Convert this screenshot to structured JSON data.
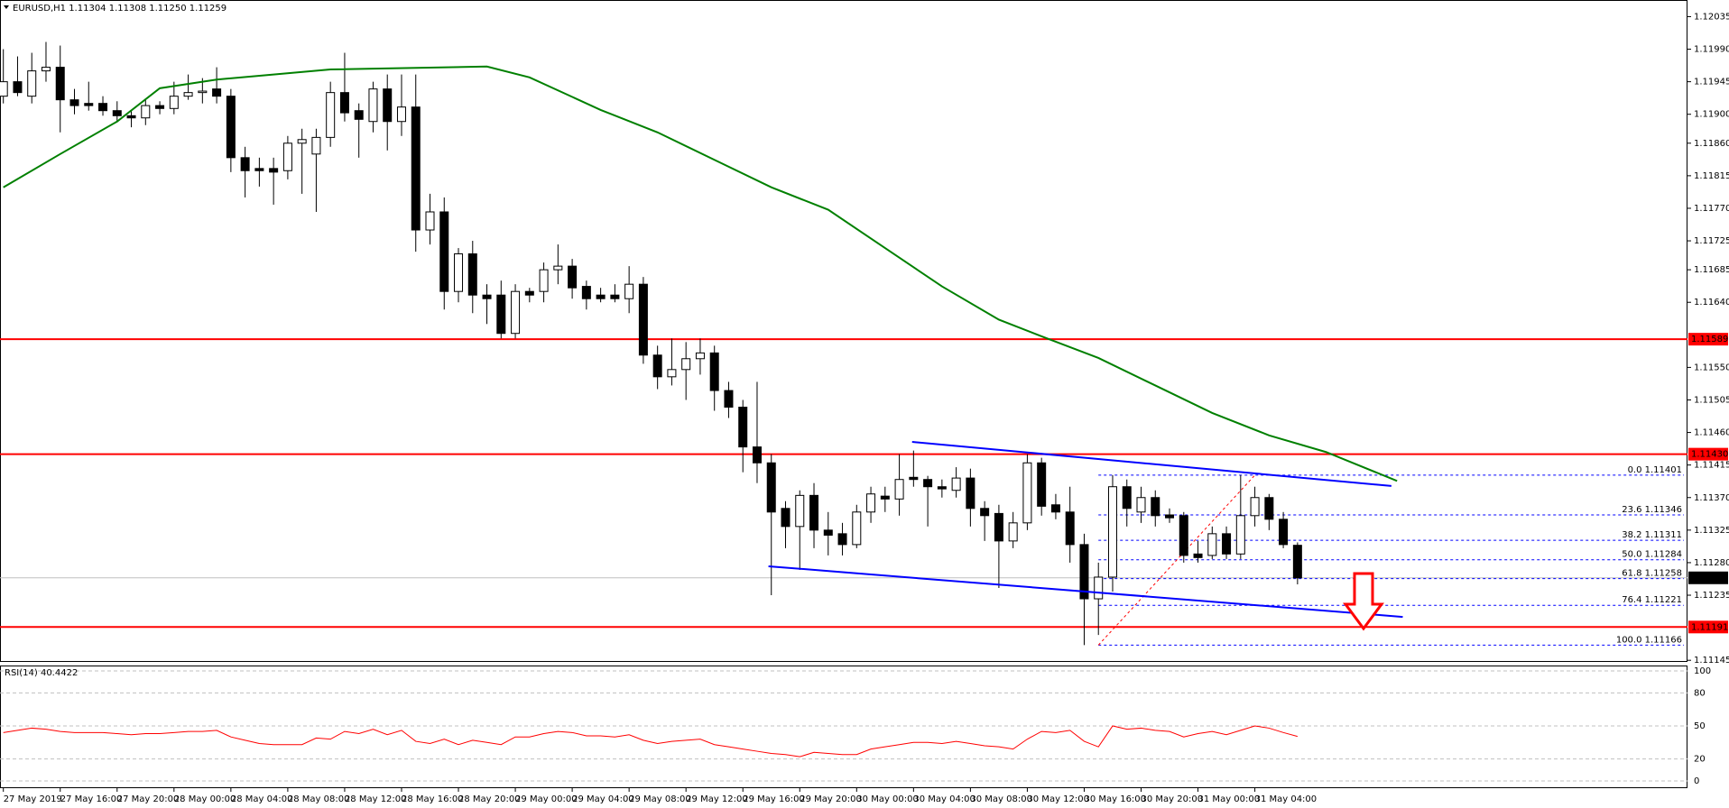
{
  "chart_data": [
    {
      "type": "candlestick",
      "title": "EURUSD,H1 1.11304 1.11308 1.11250 1.11259",
      "categories": [
        "27 May 2019",
        null,
        null,
        null,
        "27 May 16:00",
        null,
        null,
        null,
        "27 May 20:00",
        null,
        null,
        null,
        "28 May 00:00",
        null,
        null,
        null,
        "28 May 04:00",
        null,
        null,
        null,
        "28 May 08:00",
        null,
        null,
        null,
        "28 May 12:00",
        null,
        null,
        null,
        "28 May 16:00",
        null,
        null,
        null,
        "28 May 20:00",
        null,
        null,
        null,
        "29 May 00:00",
        null,
        null,
        null,
        "29 May 04:00",
        null,
        null,
        null,
        "29 May 08:00",
        null,
        null,
        null,
        "29 May 12:00",
        null,
        null,
        null,
        "29 May 16:00",
        null,
        null,
        null,
        "29 May 20:00",
        null,
        null,
        null,
        "30 May 00:00",
        null,
        null,
        null,
        "30 May 04:00",
        null,
        null,
        null,
        "30 May 08:00",
        null,
        null,
        null,
        "30 May 12:00",
        null,
        null,
        null,
        "30 May 16:00",
        null,
        null,
        null,
        "30 May 20:00",
        null,
        null,
        null,
        "31 May 00:00",
        null,
        null,
        null,
        "31 May 04:00",
        null,
        null,
        null
      ],
      "open": [
        1.11925,
        1.11945,
        1.11925,
        1.1196,
        1.11965,
        1.1192,
        1.11915,
        1.11915,
        1.11905,
        1.11898,
        1.11895,
        1.11912,
        1.11908,
        1.11925,
        1.1193,
        1.11935,
        1.11925,
        1.1184,
        1.11825,
        1.11825,
        1.11822,
        1.1186,
        1.11845,
        1.11868,
        1.1193,
        1.11905,
        1.1189,
        1.11935,
        1.1189,
        1.1191,
        1.1174,
        1.11765,
        1.11655,
        1.11707,
        1.1165,
        1.1165,
        1.11597,
        1.11655,
        1.11655,
        1.11685,
        1.1169,
        1.11662,
        1.1165,
        1.1165,
        1.11645,
        1.11665,
        1.11567,
        1.11537,
        1.11547,
        1.11562,
        1.1157,
        1.11518,
        1.11495,
        1.1144,
        1.11418,
        1.11355,
        1.1133,
        1.11373,
        1.11325,
        1.1132,
        1.11305,
        1.1135,
        1.11372,
        1.11368,
        1.11398,
        1.11395,
        1.11385,
        1.1138,
        1.11397,
        1.11355,
        1.11348,
        1.1131,
        1.11335,
        1.11418,
        1.1136,
        1.1135,
        1.11305,
        1.1123,
        1.1126,
        1.11385,
        1.1135,
        1.1137,
        1.11346,
        1.11345,
        1.11292,
        1.1129,
        1.1132,
        1.11292,
        1.11345,
        1.1137,
        1.1134,
        1.11304
      ],
      "high": [
        1.1199,
        1.1198,
        1.11985,
        1.12,
        1.11995,
        1.11935,
        1.11945,
        1.11925,
        1.11918,
        1.11905,
        1.1192,
        1.11918,
        1.11945,
        1.11955,
        1.1195,
        1.11965,
        1.11935,
        1.11855,
        1.1184,
        1.1184,
        1.1187,
        1.1188,
        1.1188,
        1.11945,
        1.11985,
        1.11915,
        1.11945,
        1.11955,
        1.11955,
        1.11955,
        1.1179,
        1.11785,
        1.11715,
        1.11725,
        1.11665,
        1.1167,
        1.11665,
        1.1166,
        1.11695,
        1.1172,
        1.117,
        1.1167,
        1.1166,
        1.11665,
        1.1169,
        1.11675,
        1.1158,
        1.1159,
        1.11585,
        1.1159,
        1.1158,
        1.1153,
        1.11505,
        1.1153,
        1.1143,
        1.11365,
        1.1138,
        1.1139,
        1.1135,
        1.11335,
        1.1136,
        1.11385,
        1.11385,
        1.1143,
        1.11435,
        1.114,
        1.11395,
        1.11412,
        1.1141,
        1.11365,
        1.1136,
        1.1135,
        1.1143,
        1.11425,
        1.11375,
        1.11385,
        1.1132,
        1.1128,
        1.11401,
        1.11395,
        1.11385,
        1.1138,
        1.11355,
        1.1135,
        1.1131,
        1.1133,
        1.1133,
        1.11401,
        1.11385,
        1.11375,
        1.1135,
        1.11308
      ],
      "low": [
        1.11915,
        1.11925,
        1.11915,
        1.11945,
        1.11875,
        1.119,
        1.11905,
        1.11898,
        1.1189,
        1.11882,
        1.11885,
        1.119,
        1.119,
        1.1192,
        1.11915,
        1.11915,
        1.1182,
        1.11785,
        1.118,
        1.11775,
        1.1181,
        1.1179,
        1.11765,
        1.11855,
        1.1189,
        1.1184,
        1.11875,
        1.1185,
        1.1187,
        1.1171,
        1.1172,
        1.1163,
        1.1164,
        1.11625,
        1.1161,
        1.1159,
        1.1159,
        1.1164,
        1.1164,
        1.11665,
        1.11645,
        1.1163,
        1.1164,
        1.1164,
        1.11625,
        1.11555,
        1.1152,
        1.11525,
        1.11505,
        1.1154,
        1.1149,
        1.1148,
        1.11405,
        1.1139,
        1.11235,
        1.113,
        1.1127,
        1.113,
        1.1129,
        1.1129,
        1.113,
        1.11335,
        1.1135,
        1.11345,
        1.11385,
        1.1133,
        1.1137,
        1.1137,
        1.1133,
        1.1131,
        1.11245,
        1.113,
        1.11325,
        1.11345,
        1.1134,
        1.1128,
        1.11166,
        1.1118,
        1.1124,
        1.1133,
        1.11335,
        1.1133,
        1.11335,
        1.1128,
        1.1128,
        1.11285,
        1.11285,
        1.11285,
        1.1133,
        1.11325,
        1.113,
        1.1125
      ],
      "close": [
        1.11945,
        1.1193,
        1.1196,
        1.11965,
        1.1192,
        1.11912,
        1.11912,
        1.11905,
        1.11898,
        1.11895,
        1.11912,
        1.11908,
        1.11925,
        1.1193,
        1.11932,
        1.11925,
        1.1184,
        1.11822,
        1.11822,
        1.1182,
        1.1186,
        1.11865,
        1.11868,
        1.1193,
        1.11902,
        1.11893,
        1.11935,
        1.1189,
        1.1191,
        1.1174,
        1.11765,
        1.11655,
        1.11707,
        1.1165,
        1.11645,
        1.11597,
        1.11655,
        1.1165,
        1.11685,
        1.1169,
        1.1166,
        1.11645,
        1.11645,
        1.11645,
        1.11665,
        1.11567,
        1.11537,
        1.11547,
        1.11562,
        1.1157,
        1.11518,
        1.11495,
        1.1144,
        1.11418,
        1.1135,
        1.1133,
        1.11373,
        1.11325,
        1.11318,
        1.11305,
        1.1135,
        1.11375,
        1.11368,
        1.11395,
        1.11395,
        1.11385,
        1.11382,
        1.11397,
        1.11355,
        1.11345,
        1.1131,
        1.11335,
        1.11418,
        1.11358,
        1.1135,
        1.11305,
        1.1123,
        1.1126,
        1.11385,
        1.11355,
        1.1137,
        1.11345,
        1.11342,
        1.1129,
        1.11287,
        1.1132,
        1.11292,
        1.11345,
        1.1137,
        1.1134,
        1.11305,
        1.11259
      ],
      "up_color": "#ffffff",
      "down_color": "#000000",
      "ylim": [
        1.11144,
        1.12058
      ],
      "yticks": [
        1.12035,
        {
          "value": 1.1199,
          "label": "1.11990"
        },
        1.11945,
        {
          "value": 1.119,
          "label": "1.11900"
        },
        {
          "value": 1.1186,
          "label": "1.11860"
        },
        1.11815,
        {
          "value": 1.1177,
          "label": "1.11770"
        },
        1.11725,
        1.11685,
        {
          "value": 1.1164,
          "label": "1.11640"
        },
        {
          "value": 1.1155,
          "label": "1.11550"
        },
        1.11505,
        {
          "value": 1.1146,
          "label": "1.11460"
        },
        1.11415,
        {
          "value": 1.1137,
          "label": "1.11370"
        },
        1.11325,
        {
          "value": 1.1128,
          "label": "1.11280"
        },
        1.11235,
        1.11145
      ],
      "ma": {
        "x": [
          0,
          4,
          8,
          11,
          15,
          23,
          34,
          37,
          42,
          46,
          50,
          54,
          58,
          62,
          66,
          70,
          73,
          77,
          81,
          85,
          89,
          93,
          98
        ],
        "values": [
          1.11799,
          1.11845,
          1.1189,
          1.11936,
          1.11948,
          1.11962,
          1.11966,
          1.11951,
          1.11906,
          1.11875,
          1.11837,
          1.11799,
          1.11768,
          1.11715,
          1.11662,
          1.11616,
          1.11593,
          1.11563,
          1.11525,
          1.11487,
          1.11456,
          1.11433,
          1.11393
        ],
        "color": "#008000"
      },
      "levels": [
        1.11589,
        {
          "value": 1.1143,
          "label": "1.11430"
        },
        1.11191
      ],
      "level_color": "#ff0000",
      "last_price": 1.11259,
      "trendlines": [
        {
          "x": [
            63.9,
            97.6
          ],
          "values": [
            1.11447,
            1.11386
          ]
        },
        {
          "x": [
            53.8,
            98.4
          ],
          "values": [
            1.11275,
            1.11205
          ]
        }
      ],
      "trend_color": "#0000ff",
      "fib": {
        "x": [
          77,
          88
        ],
        "values": [
          1.11166,
          1.11401
        ],
        "levels": [
          {
            "value": 1.11401,
            "label": "0.0 1.11401"
          },
          {
            "value": 1.11346,
            "label": "23.6 1.11346"
          },
          {
            "value": 1.11311,
            "label": "38.2 1.11311"
          },
          {
            "value": 1.11284,
            "label": "50.0 1.11284"
          },
          {
            "value": 1.11258,
            "label": "61.8 1.11258"
          },
          {
            "value": 1.11221,
            "label": "76.4 1.11221"
          },
          {
            "value": 1.11166,
            "label": "100.0 1.11166"
          }
        ]
      }
    },
    {
      "type": "line",
      "title": "RSI(14) 40.4422",
      "values": [
        44,
        46,
        48,
        47,
        45,
        44,
        44,
        44,
        43,
        42,
        43,
        43,
        44,
        45,
        45,
        46,
        40,
        37,
        34,
        33,
        33,
        33,
        39,
        38,
        45,
        43,
        47,
        42,
        46,
        36,
        34,
        38,
        33,
        37,
        35,
        33,
        40,
        40,
        43,
        45,
        44,
        41,
        41,
        40,
        42,
        37,
        34,
        36,
        37,
        38,
        33,
        31,
        29,
        27,
        25,
        24,
        22,
        26,
        25,
        24,
        24,
        29,
        31,
        33,
        35,
        35,
        34,
        36,
        34,
        32,
        31,
        29,
        38,
        45,
        44,
        46,
        36,
        31,
        50,
        47,
        48,
        46,
        45,
        40,
        43,
        45,
        42,
        46,
        50,
        48,
        44,
        40.4422
      ],
      "color": "#ff0000",
      "ylim": [
        0,
        100
      ],
      "yticks": [
        100,
        80,
        50,
        20,
        0
      ]
    }
  ]
}
